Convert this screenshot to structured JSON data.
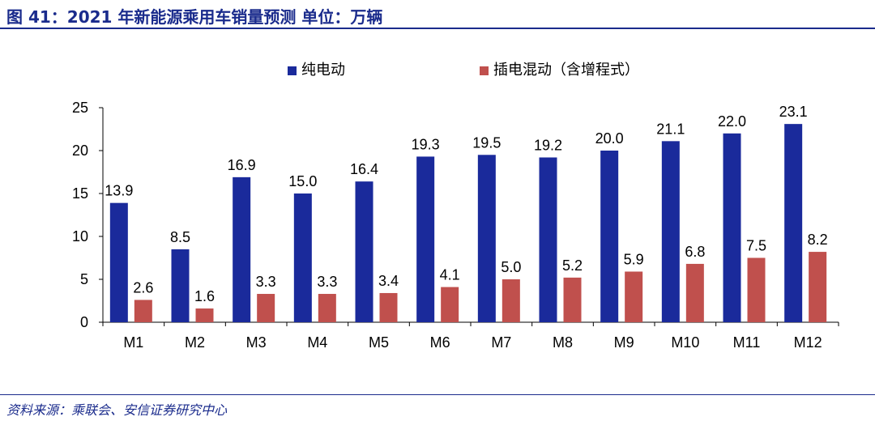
{
  "header": {
    "title": "图 41：2021 年新能源乘用车销量预测 单位：万辆"
  },
  "footer": {
    "source": "资料来源：乘联会、安信证券研究中心"
  },
  "colors": {
    "title": "#1a2b8c",
    "bev": "#1a2a9b",
    "phev": "#c0504d"
  },
  "chart_data": {
    "type": "bar",
    "title": "",
    "xlabel": "",
    "ylabel": "",
    "ylim": [
      0,
      25
    ],
    "yticks": [
      0,
      5,
      10,
      15,
      20,
      25
    ],
    "grid": false,
    "legend": "top",
    "categories": [
      "M1",
      "M2",
      "M3",
      "M4",
      "M5",
      "M6",
      "M7",
      "M8",
      "M9",
      "M10",
      "M11",
      "M12"
    ],
    "series": [
      {
        "name": "纯电动",
        "color": "#1a2a9b",
        "values": [
          13.9,
          8.5,
          16.9,
          15.0,
          16.4,
          19.3,
          19.5,
          19.2,
          20.0,
          21.1,
          22.0,
          23.1
        ],
        "labels": [
          "13.9",
          "8.5",
          "16.9",
          "15.0",
          "16.4",
          "19.3",
          "19.5",
          "19.2",
          "20.0",
          "21.1",
          "22.0",
          "23.1"
        ]
      },
      {
        "name": "插电混动（含增程式）",
        "color": "#c0504d",
        "values": [
          2.6,
          1.6,
          3.3,
          3.3,
          3.4,
          4.1,
          5.0,
          5.2,
          5.9,
          6.8,
          7.5,
          8.2
        ],
        "labels": [
          "2.6",
          "1.6",
          "3.3",
          "3.3",
          "3.4",
          "4.1",
          "5.0",
          "5.2",
          "5.9",
          "6.8",
          "7.5",
          "8.2"
        ]
      }
    ]
  }
}
